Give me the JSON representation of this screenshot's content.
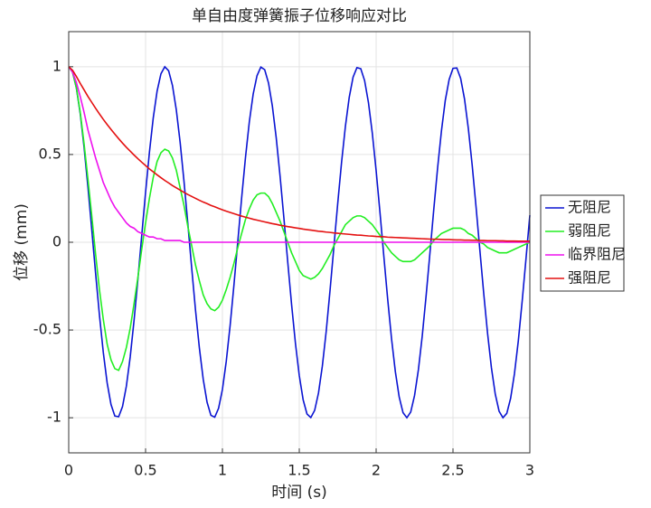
{
  "chart_data": {
    "type": "line",
    "title": "单自由度弹簧振子位移响应对比",
    "xlabel": "时间 (s)",
    "ylabel": "位移 (mm)",
    "x": [
      0,
      0.025,
      0.05,
      0.075,
      0.1,
      0.125,
      0.15,
      0.175,
      0.2,
      0.225,
      0.25,
      0.275,
      0.3,
      0.325,
      0.35,
      0.375,
      0.4,
      0.425,
      0.45,
      0.475,
      0.5,
      0.525,
      0.55,
      0.575,
      0.6,
      0.625,
      0.65,
      0.675,
      0.7,
      0.725,
      0.75,
      0.775,
      0.8,
      0.825,
      0.85,
      0.875,
      0.9,
      0.925,
      0.95,
      0.975,
      1,
      1.025,
      1.05,
      1.075,
      1.1,
      1.125,
      1.15,
      1.175,
      1.2,
      1.225,
      1.25,
      1.275,
      1.3,
      1.325,
      1.35,
      1.375,
      1.4,
      1.425,
      1.45,
      1.475,
      1.5,
      1.525,
      1.55,
      1.575,
      1.6,
      1.625,
      1.65,
      1.675,
      1.7,
      1.725,
      1.75,
      1.775,
      1.8,
      1.825,
      1.85,
      1.875,
      1.9,
      1.925,
      1.95,
      1.975,
      2,
      2.025,
      2.05,
      2.075,
      2.1,
      2.125,
      2.15,
      2.175,
      2.2,
      2.225,
      2.25,
      2.275,
      2.3,
      2.325,
      2.35,
      2.375,
      2.4,
      2.425,
      2.45,
      2.475,
      2.5,
      2.525,
      2.55,
      2.575,
      2.6,
      2.625,
      2.65,
      2.675,
      2.7,
      2.725,
      2.75,
      2.775,
      2.8,
      2.825,
      2.85,
      2.875,
      2.9,
      2.925,
      2.95,
      2.975,
      3
    ],
    "series": [
      {
        "name": "无阻尼",
        "color": "#0a14d2",
        "values": [
          1,
          0.969,
          0.878,
          0.732,
          0.54,
          0.315,
          0.071,
          -0.178,
          -0.416,
          -0.628,
          -0.801,
          -0.924,
          -0.99,
          -0.994,
          -0.936,
          -0.82,
          -0.654,
          -0.446,
          -0.211,
          0.038,
          0.284,
          0.512,
          0.709,
          0.861,
          0.96,
          1,
          0.977,
          0.893,
          0.754,
          0.568,
          0.347,
          0.105,
          -0.146,
          -0.388,
          -0.602,
          -0.78,
          -0.911,
          -0.986,
          -0.997,
          -0.946,
          -0.839,
          -0.678,
          -0.475,
          -0.243,
          0.004,
          0.252,
          0.483,
          0.686,
          0.844,
          0.949,
          0.998,
          0.983,
          0.907,
          0.775,
          0.595,
          0.377,
          0.137,
          -0.113,
          -0.355,
          -0.576,
          -0.76,
          -0.897,
          -0.978,
          -0.999,
          -0.958,
          -0.859,
          -0.706,
          -0.509,
          -0.275,
          -0.028,
          0.22,
          0.454,
          0.66,
          0.826,
          0.941,
          0.995,
          0.989,
          0.921,
          0.796,
          0.622,
          0.408,
          0.17,
          -0.079,
          -0.323,
          -0.548,
          -0.737,
          -0.882,
          -0.971,
          -1,
          -0.967,
          -0.873,
          -0.726,
          -0.534,
          -0.307,
          -0.062,
          0.187,
          0.424,
          0.635,
          0.809,
          0.927,
          0.991,
          0.993,
          0.933,
          0.816,
          0.647,
          0.438,
          0.202,
          -0.046,
          -0.292,
          -0.519,
          -0.715,
          -0.865,
          -0.963,
          -1,
          -0.975,
          -0.889,
          -0.748,
          -0.562,
          -0.337,
          -0.094,
          0.154
        ]
      },
      {
        "name": "弱阻尼",
        "color": "#22ee22",
        "values": [
          1,
          0.97,
          0.88,
          0.74,
          0.56,
          0.36,
          0.15,
          -0.07,
          -0.27,
          -0.44,
          -0.58,
          -0.67,
          -0.72,
          -0.73,
          -0.68,
          -0.6,
          -0.49,
          -0.35,
          -0.2,
          -0.04,
          0.11,
          0.25,
          0.37,
          0.46,
          0.51,
          0.53,
          0.52,
          0.48,
          0.41,
          0.31,
          0.21,
          0.09,
          -0.02,
          -0.13,
          -0.22,
          -0.3,
          -0.35,
          -0.38,
          -0.39,
          -0.37,
          -0.33,
          -0.27,
          -0.2,
          -0.12,
          -0.03,
          0.05,
          0.13,
          0.19,
          0.24,
          0.27,
          0.28,
          0.28,
          0.26,
          0.22,
          0.17,
          0.12,
          0.06,
          0,
          -0.06,
          -0.11,
          -0.16,
          -0.19,
          -0.2,
          -0.21,
          -0.2,
          -0.18,
          -0.15,
          -0.11,
          -0.07,
          -0.02,
          0.02,
          0.06,
          0.1,
          0.12,
          0.14,
          0.15,
          0.15,
          0.14,
          0.12,
          0.1,
          0.07,
          0.04,
          0,
          -0.03,
          -0.06,
          -0.08,
          -0.1,
          -0.11,
          -0.11,
          -0.11,
          -0.1,
          -0.08,
          -0.06,
          -0.04,
          -0.02,
          0.01,
          0.03,
          0.05,
          0.06,
          0.07,
          0.08,
          0.08,
          0.08,
          0.07,
          0.05,
          0.04,
          0.02,
          0,
          -0.01,
          -0.03,
          -0.04,
          -0.05,
          -0.06,
          -0.06,
          -0.06,
          -0.05,
          -0.04,
          -0.03,
          -0.02,
          -0.01,
          0
        ]
      },
      {
        "name": "临界阻尼",
        "color": "#ee11ee",
        "values": [
          1,
          0.97,
          0.91,
          0.83,
          0.74,
          0.64,
          0.56,
          0.48,
          0.41,
          0.34,
          0.29,
          0.24,
          0.2,
          0.17,
          0.14,
          0.11,
          0.09,
          0.08,
          0.06,
          0.05,
          0.04,
          0.03,
          0.03,
          0.02,
          0.02,
          0.01,
          0.01,
          0.01,
          0.01,
          0.01,
          0,
          0,
          0,
          0,
          0,
          0,
          0,
          0,
          0,
          0,
          0,
          0,
          0,
          0,
          0,
          0,
          0,
          0,
          0,
          0,
          0,
          0,
          0,
          0,
          0,
          0,
          0,
          0,
          0,
          0,
          0,
          0,
          0,
          0,
          0,
          0,
          0,
          0,
          0,
          0,
          0,
          0,
          0,
          0,
          0,
          0,
          0,
          0,
          0,
          0,
          0,
          0,
          0,
          0,
          0,
          0,
          0,
          0,
          0,
          0,
          0,
          0,
          0,
          0,
          0,
          0,
          0,
          0,
          0,
          0,
          0,
          0,
          0,
          0,
          0,
          0,
          0,
          0,
          0,
          0,
          0,
          0,
          0,
          0,
          0,
          0,
          0,
          0,
          0,
          0,
          0
        ]
      },
      {
        "name": "强阻尼",
        "color": "#e41010",
        "values": [
          1,
          0.98,
          0.944,
          0.905,
          0.868,
          0.831,
          0.797,
          0.763,
          0.731,
          0.7,
          0.671,
          0.643,
          0.616,
          0.59,
          0.565,
          0.541,
          0.519,
          0.497,
          0.476,
          0.456,
          0.437,
          0.418,
          0.401,
          0.384,
          0.368,
          0.352,
          0.338,
          0.323,
          0.31,
          0.297,
          0.284,
          0.272,
          0.261,
          0.25,
          0.239,
          0.229,
          0.22,
          0.21,
          0.202,
          0.193,
          0.185,
          0.177,
          0.17,
          0.163,
          0.156,
          0.149,
          0.143,
          0.137,
          0.131,
          0.126,
          0.121,
          0.116,
          0.111,
          0.106,
          0.102,
          0.097,
          0.093,
          0.089,
          0.086,
          0.082,
          0.079,
          0.075,
          0.072,
          0.069,
          0.066,
          0.063,
          0.061,
          0.058,
          0.056,
          0.053,
          0.051,
          0.049,
          0.047,
          0.045,
          0.043,
          0.041,
          0.04,
          0.038,
          0.036,
          0.035,
          0.033,
          0.032,
          0.031,
          0.029,
          0.028,
          0.027,
          0.026,
          0.025,
          0.024,
          0.023,
          0.022,
          0.021,
          0.02,
          0.019,
          0.018,
          0.017,
          0.017,
          0.016,
          0.015,
          0.015,
          0.014,
          0.013,
          0.013,
          0.012,
          0.012,
          0.011,
          0.011,
          0.01,
          0.01,
          0.009,
          0.009,
          0.009,
          0.008,
          0.008,
          0.007,
          0.007,
          0.007,
          0.006,
          0.006,
          0.006,
          0.006
        ]
      }
    ],
    "xlim": [
      0,
      3
    ],
    "xticks": [
      0,
      0.5,
      1,
      1.5,
      2,
      2.5,
      3
    ],
    "ylim": [
      -1.2,
      1.2
    ],
    "yticks": [
      -1,
      -0.5,
      0,
      0.5,
      1
    ],
    "grid": true,
    "legend_location": "east outside"
  }
}
